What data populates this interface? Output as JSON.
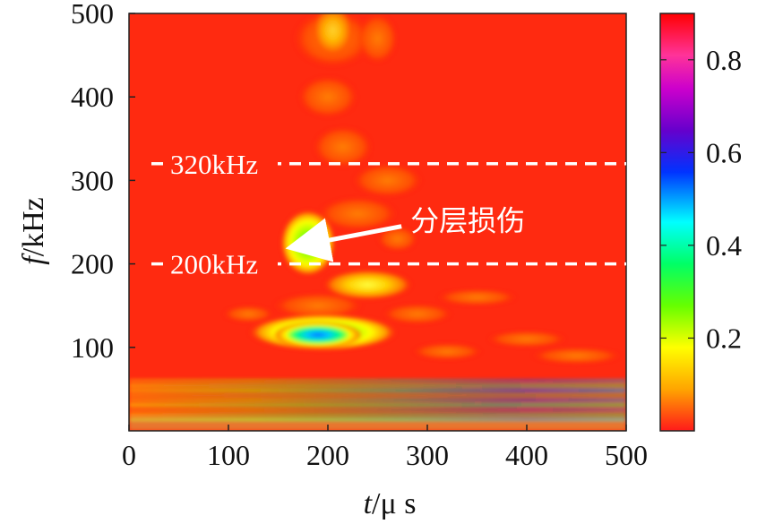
{
  "chart_data": {
    "type": "heatmap",
    "title": "",
    "xlabel_italic": "t",
    "xlabel_unit": "/μ s",
    "ylabel_italic": "f",
    "ylabel_unit": "/kHz",
    "xlim": [
      0,
      500
    ],
    "ylim": [
      0,
      500
    ],
    "xticks": [
      "0",
      "100",
      "200",
      "300",
      "400",
      "500"
    ],
    "xtick_values": [
      0,
      100,
      200,
      300,
      400,
      500
    ],
    "yticks": [
      "100",
      "200",
      "300",
      "400",
      "500"
    ],
    "ytick_values": [
      100,
      200,
      300,
      400,
      500
    ],
    "colorbar": {
      "range": [
        0,
        0.9
      ],
      "ticks": [
        "0.2",
        "0.4",
        "0.6",
        "0.8"
      ],
      "tick_values": [
        0.2,
        0.4,
        0.6,
        0.8
      ],
      "colormap": "prism-like: red (0) → yellow → green → cyan → blue → purple → magenta → red (0.9)"
    },
    "background_value": 0.0,
    "features": [
      {
        "t": 190,
        "f": 115,
        "value": 0.55,
        "description": "blue/cyan core with green halo"
      },
      {
        "t": 180,
        "f": 225,
        "value": 0.3,
        "description": "green/yellow patch (delamination damage)"
      },
      {
        "t": 240,
        "f": 175,
        "value": 0.1,
        "description": "yellow band"
      },
      {
        "t": 250,
        "f": 35,
        "value": 0.5,
        "description": "horizontal multicolor bands near low frequency"
      }
    ],
    "annotations": {
      "line_320": {
        "f": 320,
        "style": "dashed white",
        "label": "320kHz"
      },
      "line_200": {
        "f": 200,
        "style": "dashed white",
        "label": "200kHz"
      },
      "arrow": {
        "text": "分层损伤",
        "from": [
          265,
          245
        ],
        "to": [
          180,
          220
        ]
      }
    }
  }
}
